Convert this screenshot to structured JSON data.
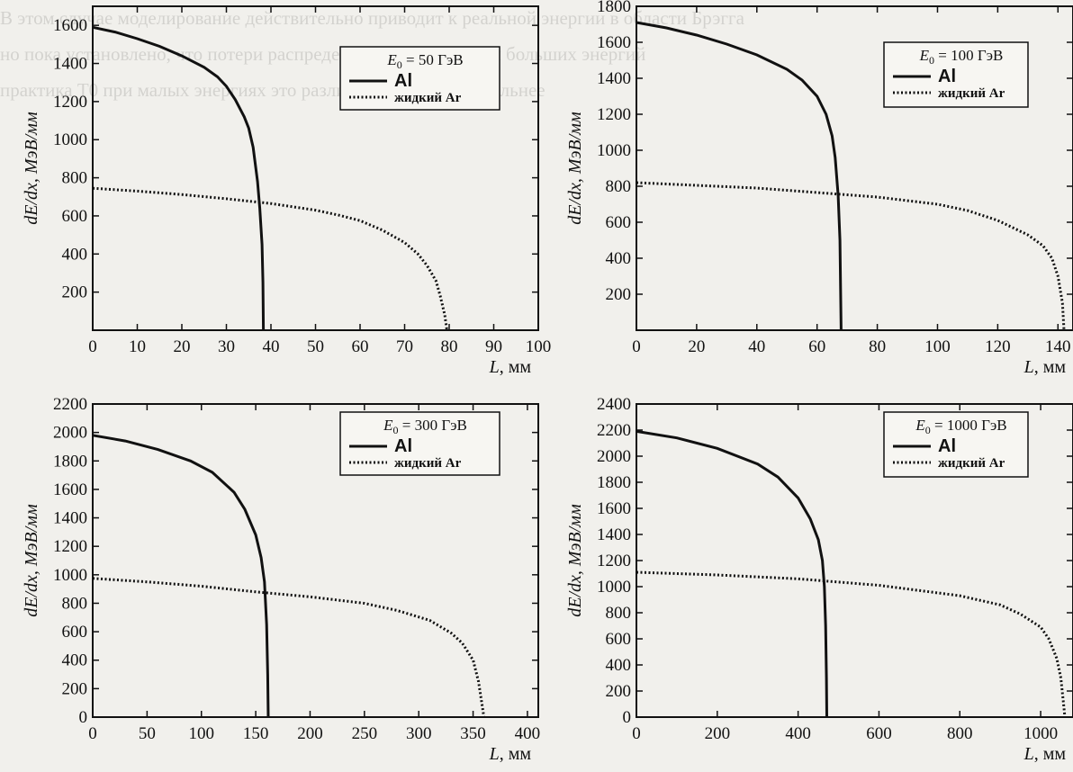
{
  "background_text": {
    "lines": [
      "В этом случае моделирование действительно приводит к реальной энергии в области Брэгга",
      "но пока установлено, что потери распределяются для малых и больших энергий",
      "практика T0 при малых энергиях это различие проявляется сильнее"
    ]
  },
  "chart_data": [
    {
      "type": "line",
      "legend": {
        "title_var": "E",
        "title_sub": "0",
        "title_rest": " = 50 ГэВ",
        "position": "top-center"
      },
      "xlabel_var": "L",
      "xlabel_unit": ", мм",
      "ylabel": "dE/dx, МэВ/мм",
      "xlim": [
        0,
        100
      ],
      "ylim": [
        0,
        1700
      ],
      "xticks": [
        "0",
        "10",
        "20",
        "30",
        "40",
        "50",
        "60",
        "70",
        "80",
        "90",
        "100"
      ],
      "yticks": [
        "200",
        "400",
        "600",
        "800",
        "1000",
        "1200",
        "1400",
        "1600"
      ],
      "series": [
        {
          "name": "Al",
          "style": "solid",
          "points": [
            [
              0,
              1590
            ],
            [
              5,
              1565
            ],
            [
              10,
              1530
            ],
            [
              15,
              1490
            ],
            [
              20,
              1440
            ],
            [
              25,
              1380
            ],
            [
              28,
              1330
            ],
            [
              30,
              1280
            ],
            [
              32,
              1210
            ],
            [
              34,
              1120
            ],
            [
              35,
              1060
            ],
            [
              36,
              960
            ],
            [
              37,
              780
            ],
            [
              37.5,
              640
            ],
            [
              38,
              450
            ],
            [
              38.2,
              250
            ],
            [
              38.3,
              0
            ]
          ]
        },
        {
          "name": "жидкий Ar",
          "style": "dotted",
          "points": [
            [
              0,
              745
            ],
            [
              10,
              730
            ],
            [
              20,
              712
            ],
            [
              30,
              690
            ],
            [
              40,
              665
            ],
            [
              50,
              630
            ],
            [
              55,
              605
            ],
            [
              60,
              575
            ],
            [
              65,
              525
            ],
            [
              70,
              460
            ],
            [
              73,
              400
            ],
            [
              75,
              340
            ],
            [
              77,
              260
            ],
            [
              78,
              180
            ],
            [
              79,
              80
            ],
            [
              79.5,
              0
            ]
          ]
        }
      ]
    },
    {
      "type": "line",
      "legend": {
        "title_var": "E",
        "title_sub": "0",
        "title_rest": " = 100 ГэВ",
        "position": "top-right"
      },
      "xlabel_var": "L",
      "xlabel_unit": ", мм",
      "ylabel": "dE/dx, МэВ/мм",
      "xlim": [
        0,
        145
      ],
      "ylim": [
        0,
        1800
      ],
      "xticks": [
        "0",
        "20",
        "40",
        "60",
        "80",
        "100",
        "120",
        "140"
      ],
      "yticks": [
        "200",
        "400",
        "600",
        "800",
        "1000",
        "1200",
        "1400",
        "1600",
        "1800"
      ],
      "series": [
        {
          "name": "Al",
          "style": "solid",
          "points": [
            [
              0,
              1710
            ],
            [
              10,
              1680
            ],
            [
              20,
              1640
            ],
            [
              30,
              1590
            ],
            [
              40,
              1530
            ],
            [
              50,
              1450
            ],
            [
              55,
              1390
            ],
            [
              60,
              1300
            ],
            [
              63,
              1200
            ],
            [
              65,
              1080
            ],
            [
              66,
              960
            ],
            [
              67,
              750
            ],
            [
              67.6,
              500
            ],
            [
              68,
              0
            ]
          ]
        },
        {
          "name": "жидкий Ar",
          "style": "dotted",
          "points": [
            [
              0,
              820
            ],
            [
              20,
              805
            ],
            [
              40,
              790
            ],
            [
              60,
              765
            ],
            [
              80,
              740
            ],
            [
              100,
              700
            ],
            [
              110,
              665
            ],
            [
              120,
              610
            ],
            [
              130,
              530
            ],
            [
              135,
              470
            ],
            [
              138,
              400
            ],
            [
              140,
              300
            ],
            [
              141.5,
              150
            ],
            [
              142,
              0
            ]
          ]
        }
      ]
    },
    {
      "type": "line",
      "legend": {
        "title_var": "E",
        "title_sub": "0",
        "title_rest": " = 300 ГэВ",
        "position": "top-center"
      },
      "xlabel_var": "L",
      "xlabel_unit": ", мм",
      "ylabel": "dE/dx, МэВ/мм",
      "xlim": [
        0,
        410
      ],
      "ylim": [
        0,
        2200
      ],
      "xticks": [
        "0",
        "50",
        "100",
        "150",
        "200",
        "250",
        "300",
        "350",
        "400"
      ],
      "yticks": [
        "0",
        "200",
        "400",
        "600",
        "800",
        "1000",
        "1200",
        "1400",
        "1600",
        "1800",
        "2000",
        "2200"
      ],
      "series": [
        {
          "name": "Al",
          "style": "solid",
          "points": [
            [
              0,
              1980
            ],
            [
              30,
              1940
            ],
            [
              60,
              1880
            ],
            [
              90,
              1800
            ],
            [
              110,
              1720
            ],
            [
              130,
              1580
            ],
            [
              140,
              1460
            ],
            [
              150,
              1280
            ],
            [
              155,
              1120
            ],
            [
              158,
              950
            ],
            [
              160,
              650
            ],
            [
              161,
              300
            ],
            [
              161.5,
              0
            ]
          ]
        },
        {
          "name": "жидкий Ar",
          "style": "dotted",
          "points": [
            [
              0,
              975
            ],
            [
              50,
              950
            ],
            [
              100,
              920
            ],
            [
              150,
              880
            ],
            [
              200,
              845
            ],
            [
              250,
              800
            ],
            [
              280,
              750
            ],
            [
              310,
              680
            ],
            [
              330,
              590
            ],
            [
              340,
              520
            ],
            [
              350,
              400
            ],
            [
              355,
              250
            ],
            [
              358,
              100
            ],
            [
              360,
              0
            ]
          ]
        }
      ]
    },
    {
      "type": "line",
      "legend": {
        "title_var": "E",
        "title_sub": "0",
        "title_rest": " = 1000 ГэВ",
        "position": "top-right"
      },
      "xlabel_var": "L",
      "xlabel_unit": ", мм",
      "ylabel": "dE/dx, МэВ/мм",
      "xlim": [
        0,
        1080
      ],
      "ylim": [
        0,
        2400
      ],
      "xticks": [
        "0",
        "200",
        "400",
        "600",
        "800",
        "1000"
      ],
      "yticks": [
        "0",
        "200",
        "400",
        "600",
        "800",
        "1000",
        "1200",
        "1400",
        "1600",
        "1800",
        "2000",
        "2200",
        "2400"
      ],
      "series": [
        {
          "name": "Al",
          "style": "solid",
          "points": [
            [
              0,
              2190
            ],
            [
              100,
              2140
            ],
            [
              200,
              2060
            ],
            [
              300,
              1940
            ],
            [
              350,
              1840
            ],
            [
              400,
              1680
            ],
            [
              430,
              1520
            ],
            [
              450,
              1360
            ],
            [
              460,
              1200
            ],
            [
              465,
              1000
            ],
            [
              468,
              700
            ],
            [
              470,
              300
            ],
            [
              471,
              0
            ]
          ]
        },
        {
          "name": "жидкий Ar",
          "style": "dotted",
          "points": [
            [
              0,
              1110
            ],
            [
              200,
              1090
            ],
            [
              400,
              1060
            ],
            [
              600,
              1010
            ],
            [
              800,
              930
            ],
            [
              900,
              860
            ],
            [
              950,
              790
            ],
            [
              1000,
              690
            ],
            [
              1020,
              600
            ],
            [
              1040,
              450
            ],
            [
              1050,
              300
            ],
            [
              1055,
              150
            ],
            [
              1060,
              0
            ]
          ]
        }
      ]
    }
  ]
}
